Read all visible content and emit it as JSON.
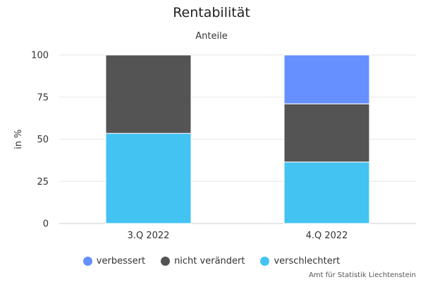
{
  "chart_data": {
    "type": "bar",
    "stacked": true,
    "title": "Rentabilität",
    "subtitle": "Anteile",
    "xlabel": "",
    "ylabel": "in %",
    "categories": [
      "3.Q 2022",
      "4.Q 2022"
    ],
    "series": [
      {
        "name": "verbessert",
        "color": "#6690ff",
        "values": [
          0,
          29
        ]
      },
      {
        "name": "nicht verändert",
        "color": "#545454",
        "values": [
          46.5,
          34.5
        ]
      },
      {
        "name": "verschlechtert",
        "color": "#43c3f2",
        "values": [
          53.5,
          36.5
        ]
      }
    ],
    "ylim": [
      0,
      100
    ],
    "yticks": [
      0,
      25,
      50,
      75,
      100
    ],
    "grid": true,
    "legend_position": "bottom"
  },
  "credits": "Amt für Statistik Liechtenstein"
}
